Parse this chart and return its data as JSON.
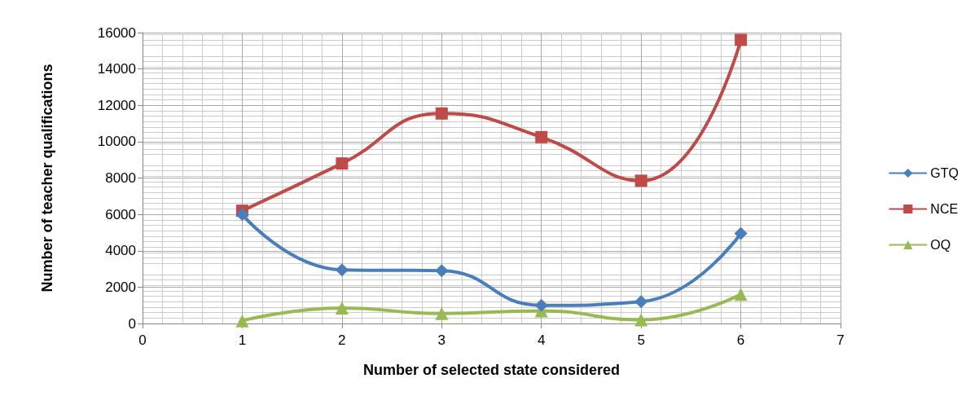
{
  "chart_data": {
    "type": "line",
    "xlabel": "Number of selected state considered",
    "ylabel": "Number of teacher qualifications",
    "x": [
      1,
      2,
      3,
      4,
      5,
      6
    ],
    "xlim": [
      0,
      7
    ],
    "xticks": [
      0,
      1,
      2,
      3,
      4,
      5,
      6,
      7
    ],
    "ylim": [
      0,
      16000
    ],
    "yticks": [
      0,
      2000,
      4000,
      6000,
      8000,
      10000,
      12000,
      14000,
      16000
    ],
    "grid": true,
    "legend": "right",
    "line_style": "solid",
    "series": [
      {
        "name": "GTQ",
        "color": "#4a7ebb",
        "marker": "diamond",
        "values": [
          6000,
          2950,
          2900,
          1000,
          1200,
          4950
        ]
      },
      {
        "name": "NCE",
        "color": "#be4b48",
        "marker": "square",
        "values": [
          6200,
          8800,
          11550,
          10250,
          7850,
          15600
        ]
      },
      {
        "name": "OQ",
        "color": "#98b954",
        "marker": "triangle",
        "values": [
          150,
          850,
          550,
          700,
          200,
          1600
        ]
      }
    ]
  }
}
